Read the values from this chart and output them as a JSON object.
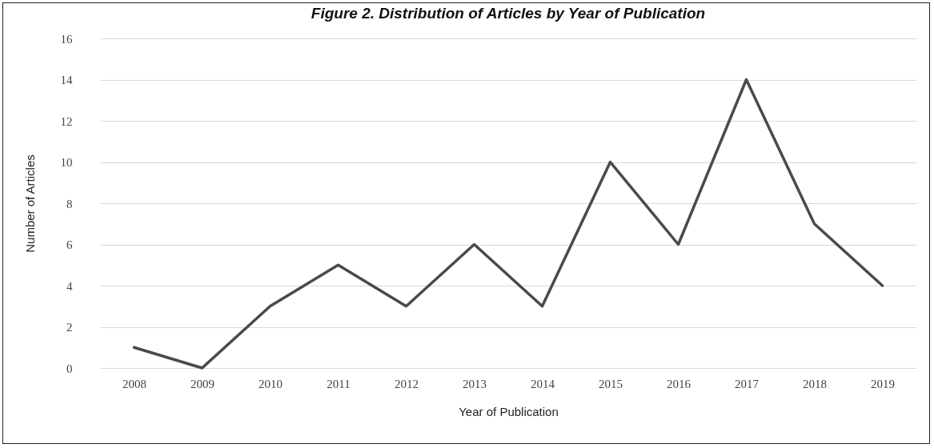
{
  "chart_data": {
    "type": "line",
    "title": "Figure 2. Distribution of Articles by Year of Publication",
    "xlabel": "Year of Publication",
    "ylabel": "Number of Articles",
    "categories": [
      "2008",
      "2009",
      "2010",
      "2011",
      "2012",
      "2013",
      "2014",
      "2015",
      "2016",
      "2017",
      "2018",
      "2019"
    ],
    "values": [
      1,
      0,
      3,
      5,
      3,
      6,
      3,
      10,
      6,
      14,
      7,
      4
    ],
    "color": "#4a4a4a",
    "ylim": [
      0,
      16
    ],
    "yticks": [
      0,
      2,
      4,
      6,
      8,
      10,
      12,
      14,
      16
    ],
    "grid": "y",
    "line_style": "solid"
  }
}
